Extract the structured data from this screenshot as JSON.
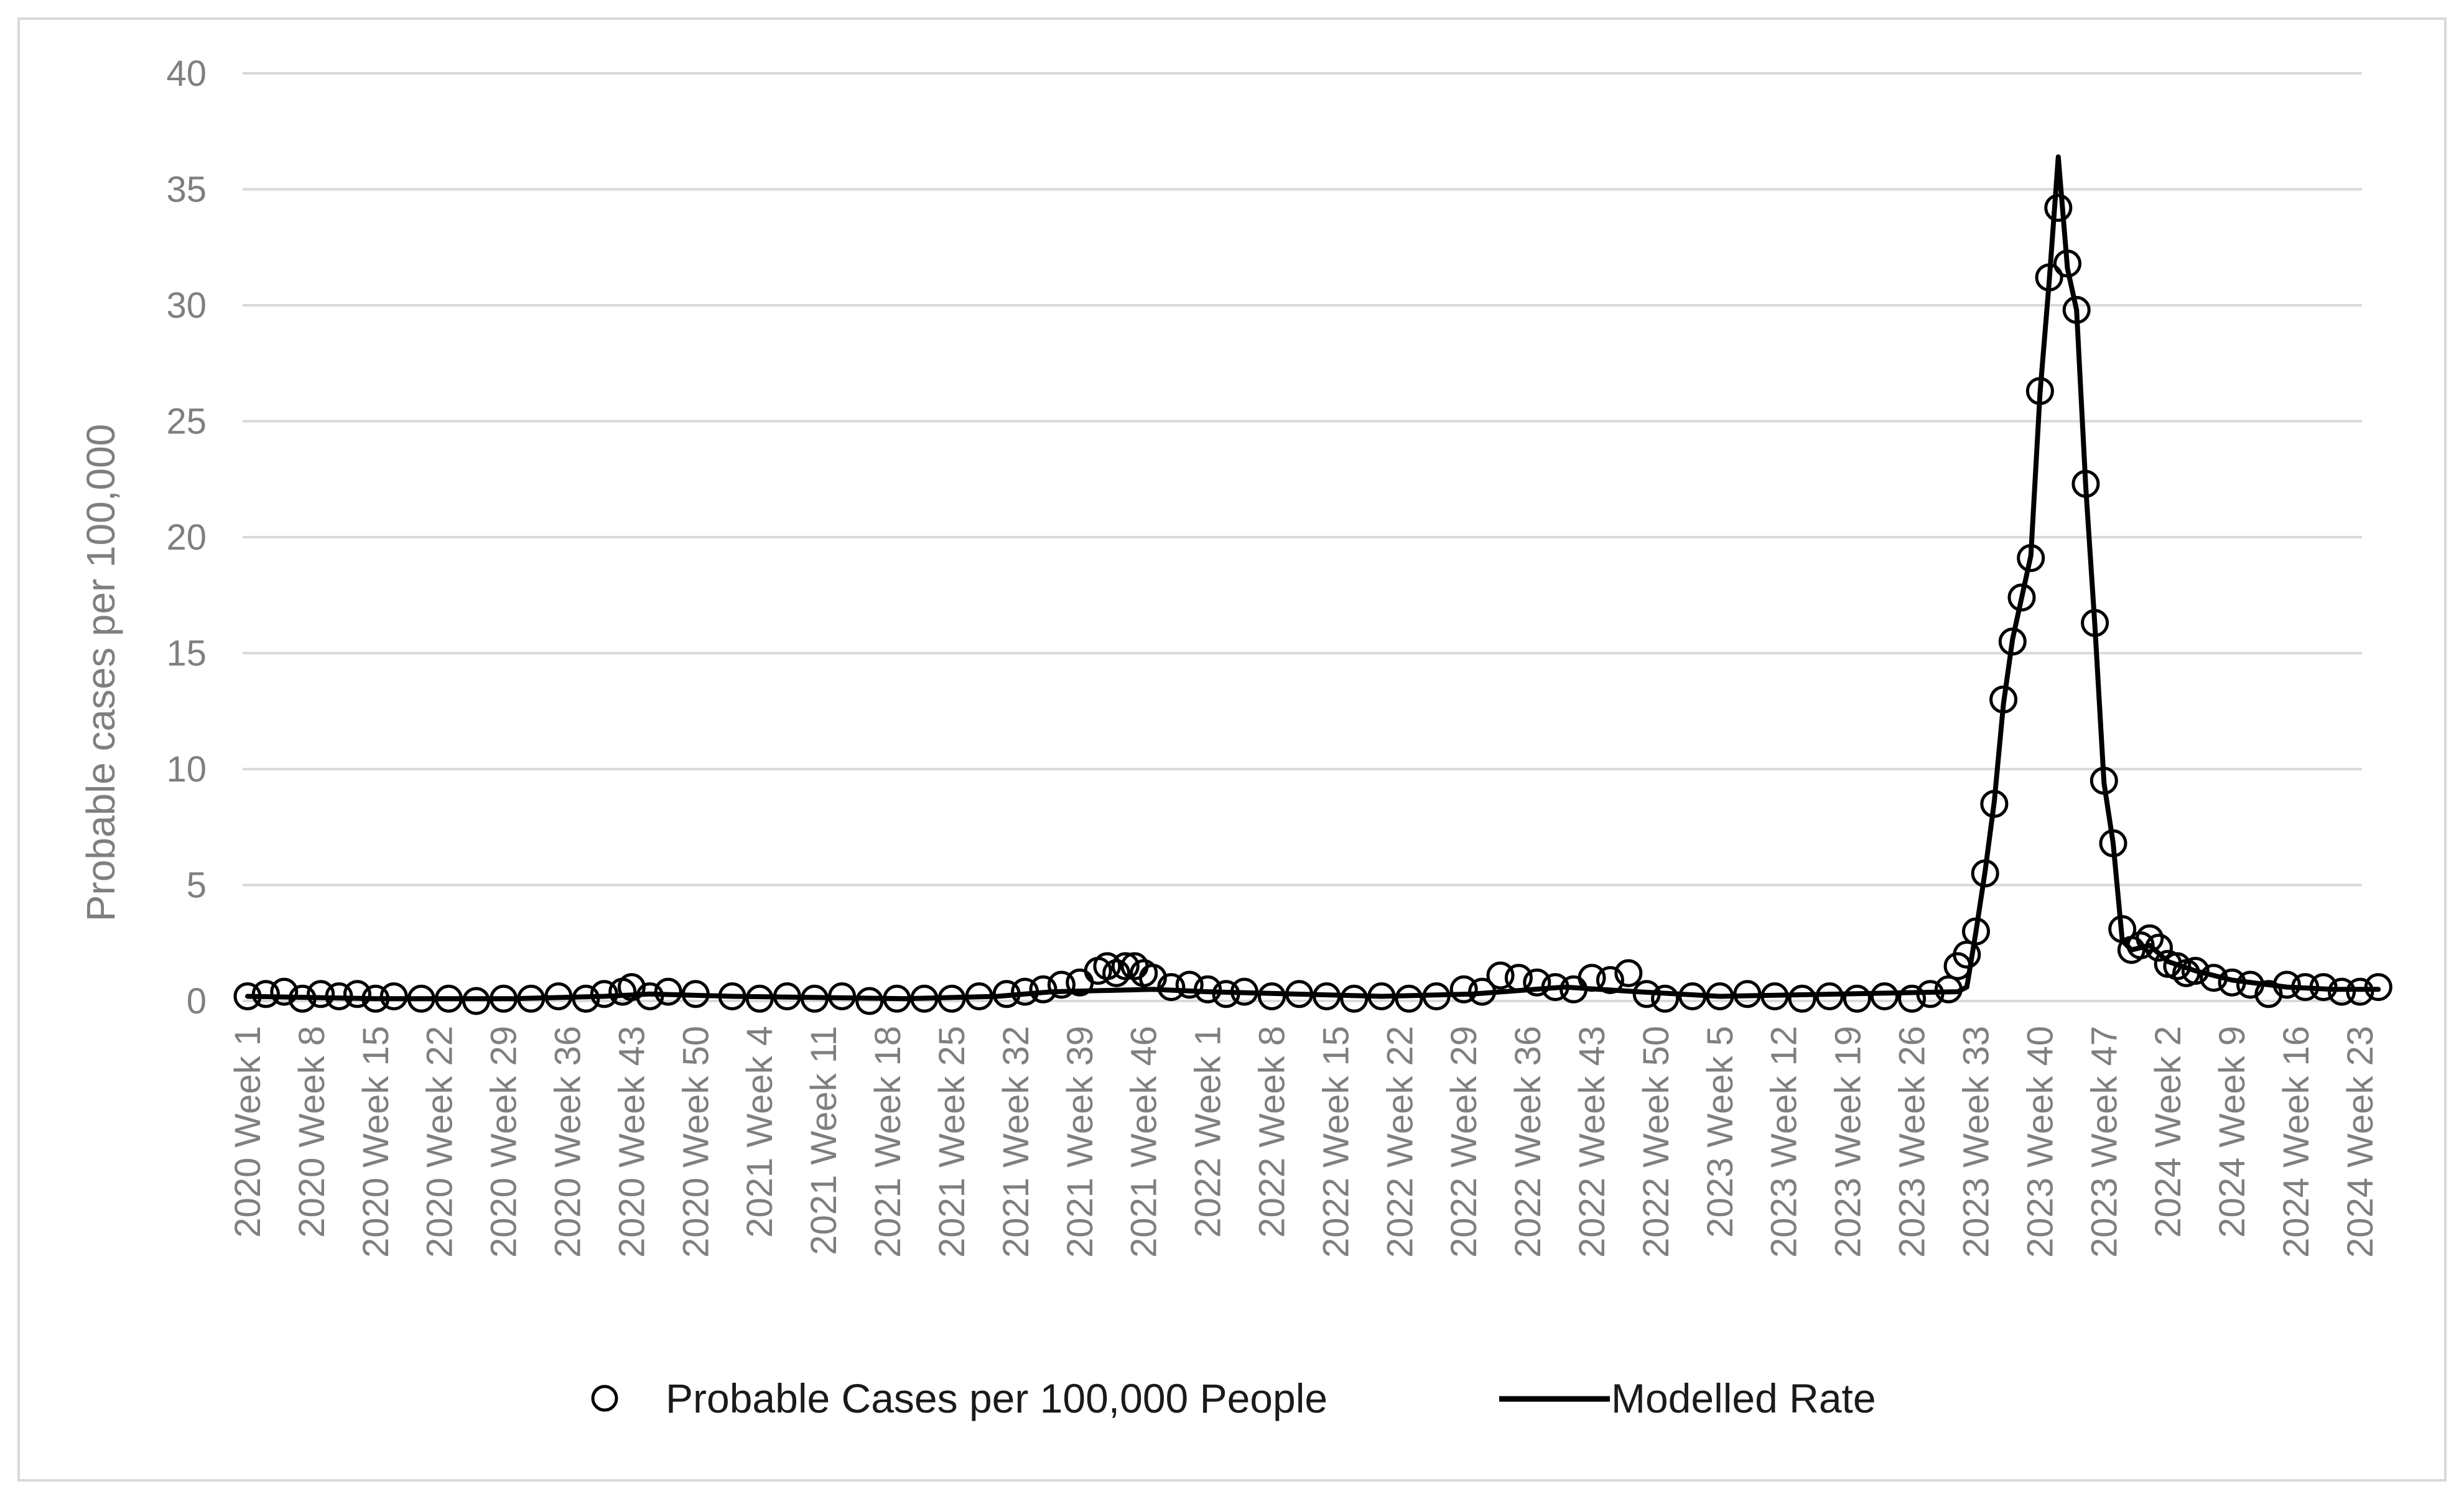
{
  "chart_data": {
    "type": "scatter",
    "title": "",
    "xlabel": "",
    "ylabel": "Probable cases  per 100,000",
    "ylim": [
      0,
      40
    ],
    "yticks": [
      0,
      5,
      10,
      15,
      20,
      25,
      30,
      35,
      40
    ],
    "grid": "horizontal",
    "legend_position": "bottom",
    "x_tick_labels": [
      "2020 Week 1",
      "2020 Week 8",
      "2020 Week 15",
      "2020 Week 22",
      "2020 Week 29",
      "2020 Week 36",
      "2020 Week 43",
      "2020 Week 50",
      "2021 Week 4",
      "2021 Week 11",
      "2021 Week 18",
      "2021 Week 25",
      "2021 Week 32",
      "2021 Week 39",
      "2021 Week 46",
      "2022 Week 1",
      "2022 Week 8",
      "2022 Week 15",
      "2022 Week 22",
      "2022 Week 29",
      "2022 Week 36",
      "2022 Week 43",
      "2022 Week 50",
      "2023 Week 5",
      "2023 Week 12",
      "2023 Week 19",
      "2023 Week 26",
      "2023 Week 33",
      "2023 Week 40",
      "2023 Week 47",
      "2024 Week 2",
      "2024 Week 9",
      "2024 Week 16",
      "2024 Week 23"
    ],
    "series": [
      {
        "name": "Probable Cases per 100,000 People",
        "style": "markers",
        "marker": "open-circle",
        "color": "#000000",
        "points": [
          [
            "2020 Week 1",
            0.2
          ],
          [
            "2020 Week 3",
            0.3
          ],
          [
            "2020 Week 5",
            0.4
          ],
          [
            "2020 Week 7",
            0.1
          ],
          [
            "2020 Week 9",
            0.3
          ],
          [
            "2020 Week 11",
            0.2
          ],
          [
            "2020 Week 13",
            0.3
          ],
          [
            "2020 Week 15",
            0.1
          ],
          [
            "2020 Week 17",
            0.2
          ],
          [
            "2020 Week 20",
            0.1
          ],
          [
            "2020 Week 23",
            0.1
          ],
          [
            "2020 Week 26",
            0.0
          ],
          [
            "2020 Week 29",
            0.1
          ],
          [
            "2020 Week 32",
            0.1
          ],
          [
            "2020 Week 35",
            0.2
          ],
          [
            "2020 Week 38",
            0.1
          ],
          [
            "2020 Week 40",
            0.3
          ],
          [
            "2020 Week 42",
            0.4
          ],
          [
            "2020 Week 43",
            0.6
          ],
          [
            "2020 Week 45",
            0.2
          ],
          [
            "2020 Week 47",
            0.4
          ],
          [
            "2020 Week 50",
            0.3
          ],
          [
            "2021 Week 1",
            0.2
          ],
          [
            "2021 Week 4",
            0.1
          ],
          [
            "2021 Week 7",
            0.2
          ],
          [
            "2021 Week 10",
            0.1
          ],
          [
            "2021 Week 13",
            0.2
          ],
          [
            "2021 Week 16",
            0.0
          ],
          [
            "2021 Week 19",
            0.1
          ],
          [
            "2021 Week 22",
            0.1
          ],
          [
            "2021 Week 25",
            0.1
          ],
          [
            "2021 Week 28",
            0.2
          ],
          [
            "2021 Week 31",
            0.3
          ],
          [
            "2021 Week 33",
            0.4
          ],
          [
            "2021 Week 35",
            0.5
          ],
          [
            "2021 Week 37",
            0.7
          ],
          [
            "2021 Week 39",
            0.8
          ],
          [
            "2021 Week 41",
            1.3
          ],
          [
            "2021 Week 42",
            1.5
          ],
          [
            "2021 Week 43",
            1.2
          ],
          [
            "2021 Week 44",
            1.5
          ],
          [
            "2021 Week 45",
            1.5
          ],
          [
            "2021 Week 46",
            1.2
          ],
          [
            "2021 Week 47",
            1.0
          ],
          [
            "2021 Week 49",
            0.6
          ],
          [
            "2021 Week 51",
            0.7
          ],
          [
            "2022 Week 1",
            0.5
          ],
          [
            "2022 Week 3",
            0.3
          ],
          [
            "2022 Week 5",
            0.4
          ],
          [
            "2022 Week 8",
            0.2
          ],
          [
            "2022 Week 11",
            0.3
          ],
          [
            "2022 Week 14",
            0.2
          ],
          [
            "2022 Week 17",
            0.1
          ],
          [
            "2022 Week 20",
            0.2
          ],
          [
            "2022 Week 23",
            0.1
          ],
          [
            "2022 Week 26",
            0.2
          ],
          [
            "2022 Week 29",
            0.5
          ],
          [
            "2022 Week 31",
            0.4
          ],
          [
            "2022 Week 33",
            1.1
          ],
          [
            "2022 Week 35",
            1.0
          ],
          [
            "2022 Week 37",
            0.8
          ],
          [
            "2022 Week 39",
            0.6
          ],
          [
            "2022 Week 41",
            0.5
          ],
          [
            "2022 Week 43",
            1.0
          ],
          [
            "2022 Week 45",
            0.9
          ],
          [
            "2022 Week 47",
            1.2
          ],
          [
            "2022 Week 49",
            0.3
          ],
          [
            "2022 Week 51",
            0.1
          ],
          [
            "2023 Week 2",
            0.2
          ],
          [
            "2023 Week 5",
            0.2
          ],
          [
            "2023 Week 8",
            0.3
          ],
          [
            "2023 Week 11",
            0.2
          ],
          [
            "2023 Week 14",
            0.1
          ],
          [
            "2023 Week 17",
            0.2
          ],
          [
            "2023 Week 20",
            0.1
          ],
          [
            "2023 Week 23",
            0.2
          ],
          [
            "2023 Week 26",
            0.1
          ],
          [
            "2023 Week 28",
            0.3
          ],
          [
            "2023 Week 30",
            0.5
          ],
          [
            "2023 Week 31",
            1.5
          ],
          [
            "2023 Week 32",
            2.0
          ],
          [
            "2023 Week 33",
            3.0
          ],
          [
            "2023 Week 34",
            5.5
          ],
          [
            "2023 Week 35",
            8.5
          ],
          [
            "2023 Week 36",
            13.0
          ],
          [
            "2023 Week 37",
            15.5
          ],
          [
            "2023 Week 38",
            17.4
          ],
          [
            "2023 Week 39",
            19.1
          ],
          [
            "2023 Week 40",
            26.3
          ],
          [
            "2023 Week 41",
            31.2
          ],
          [
            "2023 Week 42",
            34.2
          ],
          [
            "2023 Week 43",
            31.8
          ],
          [
            "2023 Week 44",
            29.8
          ],
          [
            "2023 Week 45",
            22.3
          ],
          [
            "2023 Week 46",
            16.3
          ],
          [
            "2023 Week 47",
            9.5
          ],
          [
            "2023 Week 48",
            6.8
          ],
          [
            "2023 Week 49",
            3.1
          ],
          [
            "2023 Week 50",
            2.2
          ],
          [
            "2023 Week 51",
            2.4
          ],
          [
            "2023 Week 52",
            2.7
          ],
          [
            "2024 Week 1",
            2.3
          ],
          [
            "2024 Week 2",
            1.6
          ],
          [
            "2024 Week 3",
            1.5
          ],
          [
            "2024 Week 4",
            1.2
          ],
          [
            "2024 Week 5",
            1.3
          ],
          [
            "2024 Week 7",
            1.0
          ],
          [
            "2024 Week 9",
            0.8
          ],
          [
            "2024 Week 11",
            0.7
          ],
          [
            "2024 Week 13",
            0.3
          ],
          [
            "2024 Week 15",
            0.7
          ],
          [
            "2024 Week 17",
            0.6
          ],
          [
            "2024 Week 19",
            0.6
          ],
          [
            "2024 Week 21",
            0.4
          ],
          [
            "2024 Week 23",
            0.4
          ],
          [
            "2024 Week 25",
            0.6
          ]
        ]
      },
      {
        "name": "Modelled Rate",
        "style": "line",
        "color": "#000000",
        "points": [
          [
            "2020 Week 1",
            0.2
          ],
          [
            "2020 Week 15",
            0.1
          ],
          [
            "2020 Week 30",
            0.1
          ],
          [
            "2020 Week 40",
            0.2
          ],
          [
            "2020 Week 45",
            0.3
          ],
          [
            "2021 Week 1",
            0.2
          ],
          [
            "2021 Week 20",
            0.1
          ],
          [
            "2021 Week 30",
            0.2
          ],
          [
            "2021 Week 36",
            0.4
          ],
          [
            "2021 Week 47",
            0.5
          ],
          [
            "2022 Week 1",
            0.4
          ],
          [
            "2022 Week 20",
            0.2
          ],
          [
            "2022 Week 30",
            0.3
          ],
          [
            "2022 Week 40",
            0.6
          ],
          [
            "2022 Week 48",
            0.4
          ],
          [
            "2023 Week 5",
            0.2
          ],
          [
            "2023 Week 31",
            0.4
          ],
          [
            "2023 Week 32",
            0.6
          ],
          [
            "2023 Week 33",
            3.0
          ],
          [
            "2023 Week 34",
            5.6
          ],
          [
            "2023 Week 35",
            8.6
          ],
          [
            "2023 Week 36",
            12.8
          ],
          [
            "2023 Week 37",
            15.6
          ],
          [
            "2023 Week 38",
            17.4
          ],
          [
            "2023 Week 39",
            19.2
          ],
          [
            "2023 Week 40",
            26.2
          ],
          [
            "2023 Week 41",
            31.0
          ],
          [
            "2023 Week 42",
            36.4
          ],
          [
            "2023 Week 43",
            31.6
          ],
          [
            "2023 Week 44",
            29.8
          ],
          [
            "2023 Week 45",
            22.2
          ],
          [
            "2023 Week 46",
            16.2
          ],
          [
            "2023 Week 47",
            9.4
          ],
          [
            "2023 Week 48",
            6.8
          ],
          [
            "2023 Week 49",
            2.6
          ],
          [
            "2023 Week 50",
            2.2
          ],
          [
            "2023 Week 52",
            2.4
          ],
          [
            "2024 Week 2",
            1.7
          ],
          [
            "2024 Week 5",
            1.3
          ],
          [
            "2024 Week 9",
            0.9
          ],
          [
            "2024 Week 15",
            0.6
          ],
          [
            "2024 Week 20",
            0.5
          ],
          [
            "2024 Week 25",
            0.5
          ]
        ]
      }
    ],
    "legend": [
      "Probable Cases per 100,000 People",
      "Modelled Rate"
    ]
  }
}
